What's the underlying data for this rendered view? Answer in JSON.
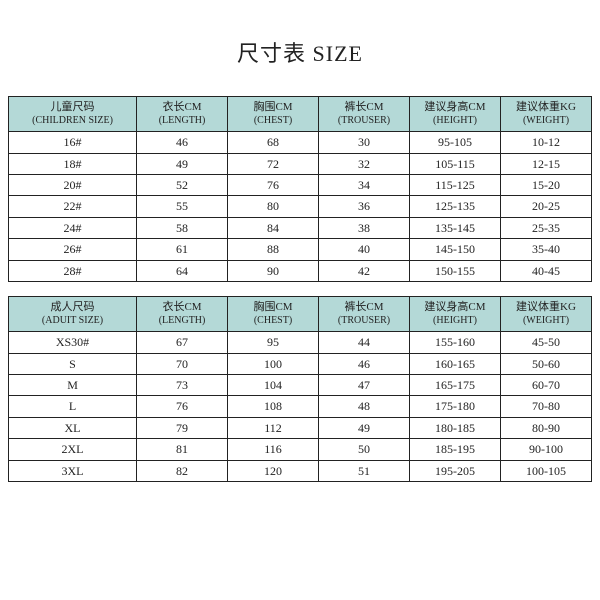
{
  "title": "尺寸表 SIZE",
  "header_bg": "#b4d9d7",
  "border_color": "#222222",
  "text_color": "#222222",
  "children_table": {
    "type": "table",
    "columns": [
      {
        "zh": "儿童尺码",
        "en": "(CHILDREN SIZE)"
      },
      {
        "zh": "衣长CM",
        "en": "(LENGTH)"
      },
      {
        "zh": "胸围CM",
        "en": "(CHEST)"
      },
      {
        "zh": "裤长CM",
        "en": "(TROUSER)"
      },
      {
        "zh": "建议身高CM",
        "en": "(HEIGHT)"
      },
      {
        "zh": "建议体重KG",
        "en": "(WEIGHT)"
      }
    ],
    "rows": [
      [
        "16#",
        "46",
        "68",
        "30",
        "95-105",
        "10-12"
      ],
      [
        "18#",
        "49",
        "72",
        "32",
        "105-115",
        "12-15"
      ],
      [
        "20#",
        "52",
        "76",
        "34",
        "115-125",
        "15-20"
      ],
      [
        "22#",
        "55",
        "80",
        "36",
        "125-135",
        "20-25"
      ],
      [
        "24#",
        "58",
        "84",
        "38",
        "135-145",
        "25-35"
      ],
      [
        "26#",
        "61",
        "88",
        "40",
        "145-150",
        "35-40"
      ],
      [
        "28#",
        "64",
        "90",
        "42",
        "150-155",
        "40-45"
      ]
    ]
  },
  "adult_table": {
    "type": "table",
    "columns": [
      {
        "zh": "成人尺码",
        "en": "(ADUIT SIZE)"
      },
      {
        "zh": "衣长CM",
        "en": "(LENGTH)"
      },
      {
        "zh": "胸围CM",
        "en": "(CHEST)"
      },
      {
        "zh": "裤长CM",
        "en": "(TROUSER)"
      },
      {
        "zh": "建议身高CM",
        "en": "(HEIGHT)"
      },
      {
        "zh": "建议体重KG",
        "en": "(WEIGHT)"
      }
    ],
    "rows": [
      [
        "XS30#",
        "67",
        "95",
        "44",
        "155-160",
        "45-50"
      ],
      [
        "S",
        "70",
        "100",
        "46",
        "160-165",
        "50-60"
      ],
      [
        "M",
        "73",
        "104",
        "47",
        "165-175",
        "60-70"
      ],
      [
        "L",
        "76",
        "108",
        "48",
        "175-180",
        "70-80"
      ],
      [
        "XL",
        "79",
        "112",
        "49",
        "180-185",
        "80-90"
      ],
      [
        "2XL",
        "81",
        "116",
        "50",
        "185-195",
        "90-100"
      ],
      [
        "3XL",
        "82",
        "120",
        "51",
        "195-205",
        "100-105"
      ]
    ]
  }
}
